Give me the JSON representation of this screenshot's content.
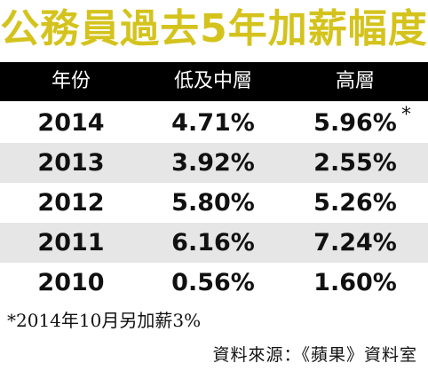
{
  "title": "公務員過去5年加薪幅度",
  "chart_data": {
    "type": "table",
    "title": "公務員過去5年加薪幅度",
    "columns": [
      "年份",
      "低及中層",
      "高層"
    ],
    "rows": [
      {
        "year": "2014",
        "low_mid": "4.71%",
        "high": "5.96%",
        "high_mark": "*"
      },
      {
        "year": "2013",
        "low_mid": "3.92%",
        "high": "2.55%",
        "high_mark": ""
      },
      {
        "year": "2012",
        "low_mid": "5.80%",
        "high": "5.26%",
        "high_mark": ""
      },
      {
        "year": "2011",
        "low_mid": "6.16%",
        "high": "7.24%",
        "high_mark": ""
      },
      {
        "year": "2010",
        "low_mid": "0.56%",
        "high": "1.60%",
        "high_mark": ""
      }
    ]
  },
  "footnote": "*2014年10月另加薪3%",
  "source": "資料來源：《蘋果》資料室",
  "colors": {
    "title": "#d4c31c",
    "header_bg": "#000000",
    "header_text": "#ffffff",
    "row_shade": "#e6e6e6"
  }
}
